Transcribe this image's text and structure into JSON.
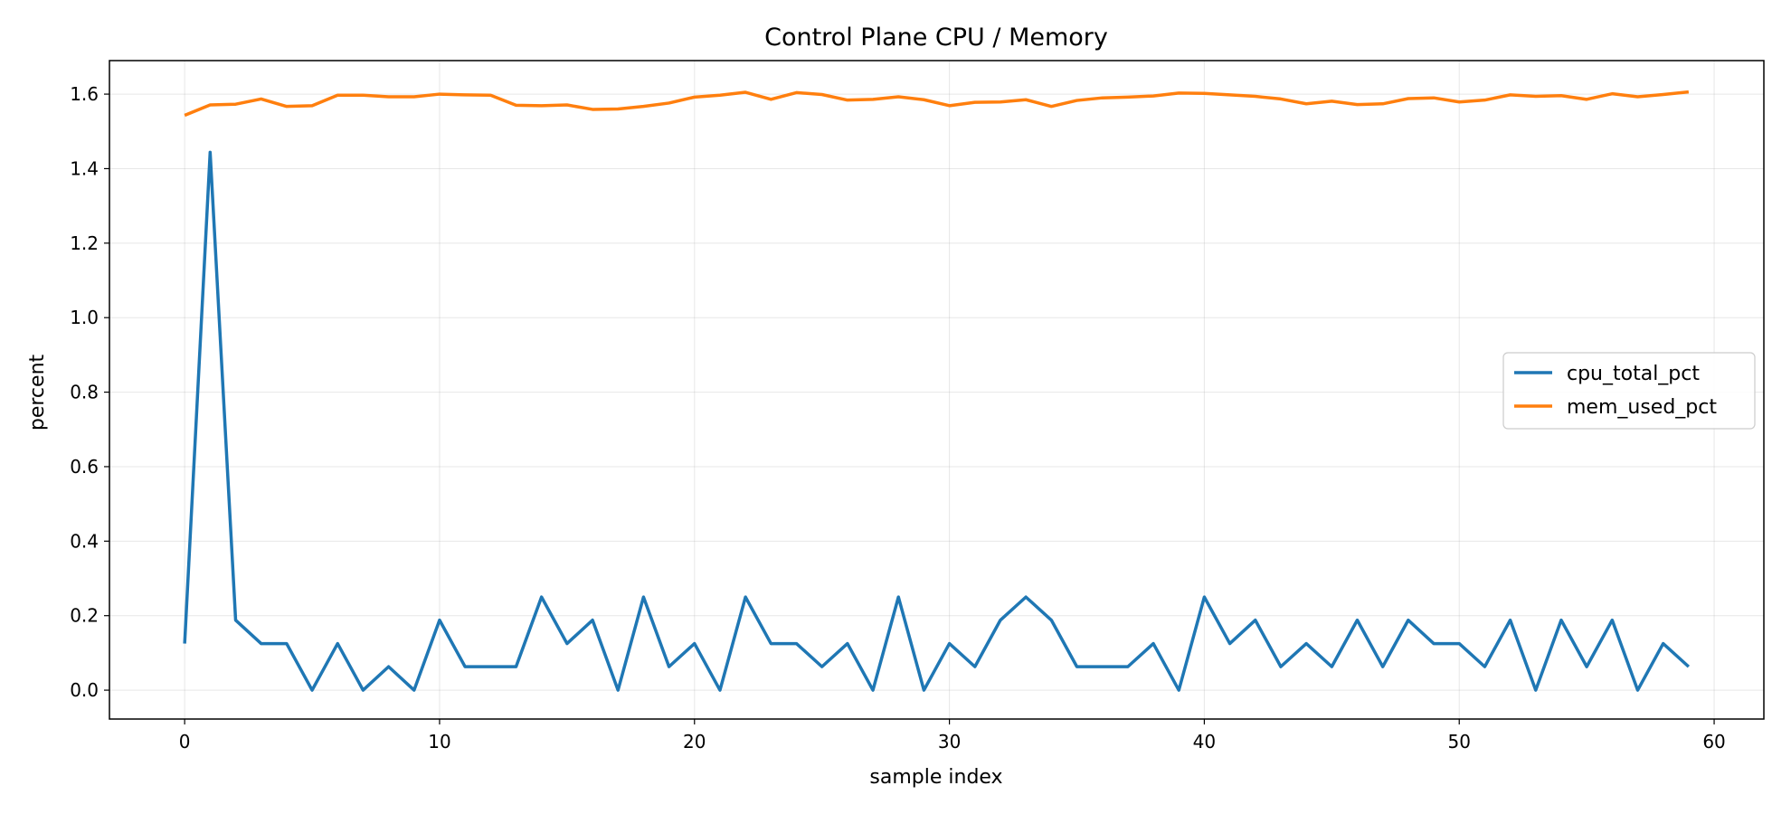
{
  "chart_data": {
    "type": "line",
    "title": "Control Plane CPU / Memory",
    "xlabel": "sample index",
    "ylabel": "percent",
    "xlim": [
      -2.95,
      61.95
    ],
    "ylim": [
      -0.0775,
      1.69
    ],
    "xticks": [
      0,
      10,
      20,
      30,
      40,
      50,
      60
    ],
    "xtick_labels": [
      "0",
      "10",
      "20",
      "30",
      "40",
      "50",
      "60"
    ],
    "yticks": [
      0.0,
      0.2,
      0.4,
      0.6,
      0.8,
      1.0,
      1.2,
      1.4,
      1.6
    ],
    "ytick_labels": [
      "0.0",
      "0.2",
      "0.4",
      "0.6",
      "0.8",
      "1.0",
      "1.2",
      "1.4",
      "1.6"
    ],
    "grid": true,
    "legend_position": "center-right",
    "x": [
      0,
      1,
      2,
      3,
      4,
      5,
      6,
      7,
      8,
      9,
      10,
      11,
      12,
      13,
      14,
      15,
      16,
      17,
      18,
      19,
      20,
      21,
      22,
      23,
      24,
      25,
      26,
      27,
      28,
      29,
      30,
      31,
      32,
      33,
      34,
      35,
      36,
      37,
      38,
      39,
      40,
      41,
      42,
      43,
      44,
      45,
      46,
      47,
      48,
      49,
      50,
      51,
      52,
      53,
      54,
      55,
      56,
      57,
      58,
      59
    ],
    "series": [
      {
        "name": "cpu_total_pct",
        "color": "#1f77b4",
        "values": [
          0.125,
          1.444,
          0.188,
          0.125,
          0.125,
          0.0,
          0.125,
          0.0,
          0.063,
          0.0,
          0.188,
          0.063,
          0.063,
          0.063,
          0.25,
          0.125,
          0.188,
          0.0,
          0.25,
          0.063,
          0.125,
          0.0,
          0.25,
          0.125,
          0.125,
          0.063,
          0.125,
          0.0,
          0.25,
          0.0,
          0.125,
          0.063,
          0.188,
          0.25,
          0.188,
          0.063,
          0.063,
          0.063,
          0.125,
          0.0,
          0.25,
          0.125,
          0.188,
          0.063,
          0.125,
          0.063,
          0.188,
          0.063,
          0.188,
          0.125,
          0.125,
          0.063,
          0.188,
          0.0,
          0.188,
          0.063,
          0.188,
          0.0,
          0.125,
          0.063
        ]
      },
      {
        "name": "mem_used_pct",
        "color": "#ff7f0e",
        "values": [
          1.543,
          1.571,
          1.573,
          1.587,
          1.567,
          1.569,
          1.597,
          1.597,
          1.593,
          1.593,
          1.6,
          1.598,
          1.597,
          1.57,
          1.569,
          1.571,
          1.559,
          1.56,
          1.567,
          1.576,
          1.592,
          1.597,
          1.605,
          1.586,
          1.604,
          1.599,
          1.584,
          1.586,
          1.593,
          1.585,
          1.569,
          1.578,
          1.579,
          1.585,
          1.567,
          1.583,
          1.59,
          1.592,
          1.595,
          1.603,
          1.602,
          1.598,
          1.594,
          1.587,
          1.574,
          1.581,
          1.572,
          1.574,
          1.588,
          1.59,
          1.579,
          1.584,
          1.598,
          1.594,
          1.596,
          1.586,
          1.601,
          1.593,
          1.599,
          1.606
        ]
      }
    ]
  }
}
